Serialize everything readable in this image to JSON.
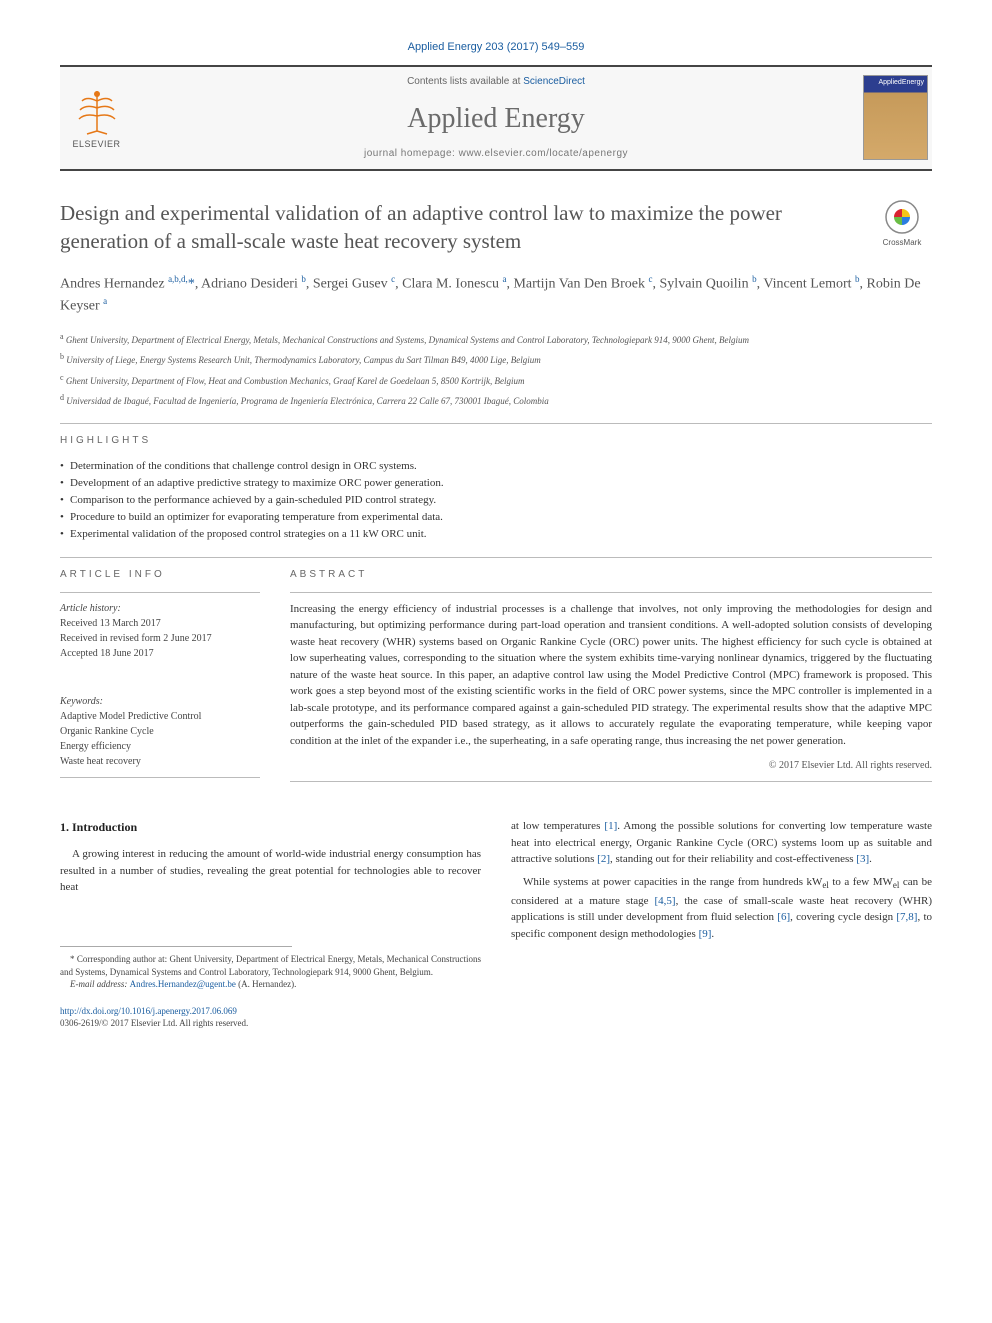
{
  "citation": "Applied Energy 203 (2017) 549–559",
  "header": {
    "contents_prefix": "Contents lists available at ",
    "contents_link": "ScienceDirect",
    "journal_name": "Applied Energy",
    "homepage_label": "journal homepage: www.elsevier.com/locate/apenergy",
    "elsevier_label": "ELSEVIER",
    "cover_label": "AppliedEnergy"
  },
  "crossmark_label": "CrossMark",
  "title": "Design and experimental validation of an adaptive control law to maximize the power generation of a small-scale waste heat recovery system",
  "authors_html": "Andres Hernandez <sup>a,b,d,</sup><a>*</a>, Adriano Desideri <sup>b</sup>, Sergei Gusev <sup>c</sup>, Clara M. Ionescu <sup>a</sup>, Martijn Van Den Broek <sup>c</sup>, Sylvain Quoilin <sup>b</sup>, Vincent Lemort <sup>b</sup>, Robin De Keyser <sup>a</sup>",
  "affiliations": [
    "a Ghent University, Department of Electrical Energy, Metals, Mechanical Constructions and Systems, Dynamical Systems and Control Laboratory, Technologiepark 914, 9000 Ghent, Belgium",
    "b University of Liege, Energy Systems Research Unit, Thermodynamics Laboratory, Campus du Sart Tilman B49, 4000 Lige, Belgium",
    "c Ghent University, Department of Flow, Heat and Combustion Mechanics, Graaf Karel de Goedelaan 5, 8500 Kortrijk, Belgium",
    "d Universidad de Ibagué, Facultad de Ingeniería, Programa de Ingeniería Electrónica, Carrera 22 Calle 67, 730001 Ibagué, Colombia"
  ],
  "highlights_label": "highlights",
  "highlights": [
    "Determination of the conditions that challenge control design in ORC systems.",
    "Development of an adaptive predictive strategy to maximize ORC power generation.",
    "Comparison to the performance achieved by a gain-scheduled PID control strategy.",
    "Procedure to build an optimizer for evaporating temperature from experimental data.",
    "Experimental validation of the proposed control strategies on a 11 kW ORC unit."
  ],
  "article_info_label": "article info",
  "article_info": {
    "history_label": "Article history:",
    "received": "Received 13 March 2017",
    "revised": "Received in revised form 2 June 2017",
    "accepted": "Accepted 18 June 2017",
    "keywords_label": "Keywords:",
    "keywords": [
      "Adaptive Model Predictive Control",
      "Organic Rankine Cycle",
      "Energy efficiency",
      "Waste heat recovery"
    ]
  },
  "abstract_label": "abstract",
  "abstract": "Increasing the energy efficiency of industrial processes is a challenge that involves, not only improving the methodologies for design and manufacturing, but optimizing performance during part-load operation and transient conditions. A well-adopted solution consists of developing waste heat recovery (WHR) systems based on Organic Rankine Cycle (ORC) power units. The highest efficiency for such cycle is obtained at low superheating values, corresponding to the situation where the system exhibits time-varying nonlinear dynamics, triggered by the fluctuating nature of the waste heat source. In this paper, an adaptive control law using the Model Predictive Control (MPC) framework is proposed. This work goes a step beyond most of the existing scientific works in the field of ORC power systems, since the MPC controller is implemented in a lab-scale prototype, and its performance compared against a gain-scheduled PID strategy. The experimental results show that the adaptive MPC outperforms the gain-scheduled PID based strategy, as it allows to accurately regulate the evaporating temperature, while keeping vapor condition at the inlet of the expander i.e., the superheating, in a safe operating range, thus increasing the net power generation.",
  "copyright": "© 2017 Elsevier Ltd. All rights reserved.",
  "intro_heading": "1. Introduction",
  "intro_p1": "A growing interest in reducing the amount of world-wide industrial energy consumption has resulted in a number of studies, revealing the great potential for technologies able to recover heat",
  "intro_p2_pre": "at low temperatures ",
  "intro_p2_post1": ". Among the possible solutions for converting low temperature waste heat into electrical energy, Organic Rankine Cycle (ORC) systems loom up as suitable and attractive solutions ",
  "intro_p2_post2": ", standing out for their reliability and cost-effectiveness ",
  "intro_p3_a": "While systems at power capacities in the range from hundreds kW",
  "intro_p3_b": " to a few MW",
  "intro_p3_c": " can be considered at a mature stage ",
  "intro_p3_d": ", the case of small-scale waste heat recovery (WHR) applications is still under development from fluid selection ",
  "intro_p3_e": ", covering cycle design ",
  "intro_p3_f": ", to specific component design methodologies ",
  "refs": {
    "r1": "[1]",
    "r2": "[2]",
    "r3": "[3]",
    "r45": "[4,5]",
    "r6": "[6]",
    "r78": "[7,8]",
    "r9": "[9]"
  },
  "sub_el": "el",
  "footnote": {
    "corr": "* Corresponding author at: Ghent University, Department of Electrical Energy, Metals, Mechanical Constructions and Systems, Dynamical Systems and Control Laboratory, Technologiepark 914, 9000 Ghent, Belgium.",
    "email_label": "E-mail address: ",
    "email": "Andres.Hernandez@ugent.be",
    "email_suffix": " (A. Hernandez)."
  },
  "doi": {
    "url": "http://dx.doi.org/10.1016/j.apenergy.2017.06.069",
    "issn": "0306-2619/© 2017 Elsevier Ltd. All rights reserved."
  },
  "colors": {
    "link": "#1a5da0",
    "elsevier_orange": "#e67817",
    "text": "#333333",
    "title_grey": "#555555",
    "rule": "#bbbbbb"
  }
}
